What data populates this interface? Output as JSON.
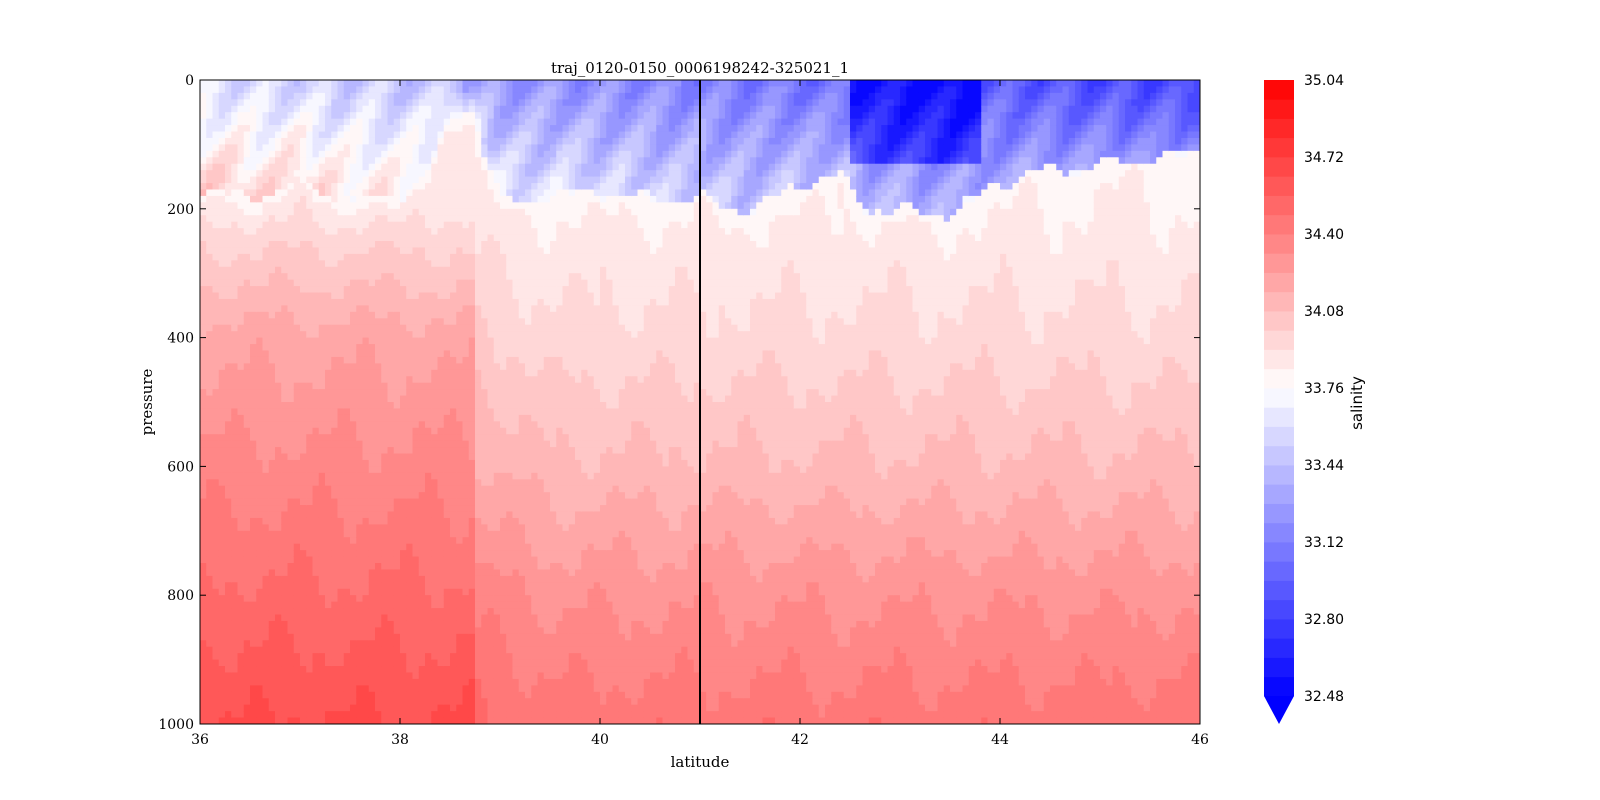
{
  "chart_data": {
    "type": "contourf",
    "title": "traj_0120-0150_0006198242-325021_1",
    "xlabel": "latitude",
    "ylabel": "pressure",
    "xlim": [
      36,
      46
    ],
    "ylim": [
      1000,
      0
    ],
    "y_inverted": true,
    "xticks": [
      "36",
      "38",
      "40",
      "42",
      "44",
      "46"
    ],
    "yticks": [
      "0",
      "200",
      "400",
      "600",
      "800",
      "1000"
    ],
    "vertical_line_x": 41.0,
    "colormap": "bwr",
    "colorbar": {
      "label": "salinity",
      "min": 32.48,
      "max": 35.04,
      "levels_step": 0.08,
      "extend": "min",
      "ticks": [
        "32.48",
        "32.80",
        "33.12",
        "33.44",
        "33.76",
        "34.08",
        "34.40",
        "34.72",
        "35.04"
      ]
    },
    "halocline_depth_profile": {
      "x": [
        36.0,
        36.5,
        37.0,
        37.5,
        38.0,
        38.3,
        38.5,
        38.7,
        39.0,
        39.5,
        40.0,
        40.5,
        41.0,
        41.5,
        42.0,
        42.4,
        42.7,
        43.0,
        43.5,
        44.0,
        44.5,
        45.0,
        45.5,
        46.0
      ],
      "pressure": [
        170,
        185,
        160,
        190,
        180,
        150,
        60,
        40,
        190,
        180,
        175,
        185,
        185,
        200,
        160,
        150,
        200,
        205,
        210,
        160,
        140,
        130,
        120,
        115
      ]
    },
    "surface_min_salinity_region": {
      "x": [
        42.5,
        43.8
      ],
      "pressure": [
        0,
        130
      ],
      "salinity": 32.48
    },
    "deep_salinity": {
      "pressure": [
        200,
        400,
        600,
        800,
        1000
      ],
      "salinity_west": [
        33.9,
        34.2,
        34.35,
        34.5,
        34.65
      ],
      "salinity_east": [
        33.84,
        33.95,
        34.1,
        34.3,
        34.45
      ]
    }
  },
  "colors": {
    "low": "#0000ff",
    "mid": "#ffffff",
    "high": "#ff0000",
    "axis": "#000000"
  }
}
